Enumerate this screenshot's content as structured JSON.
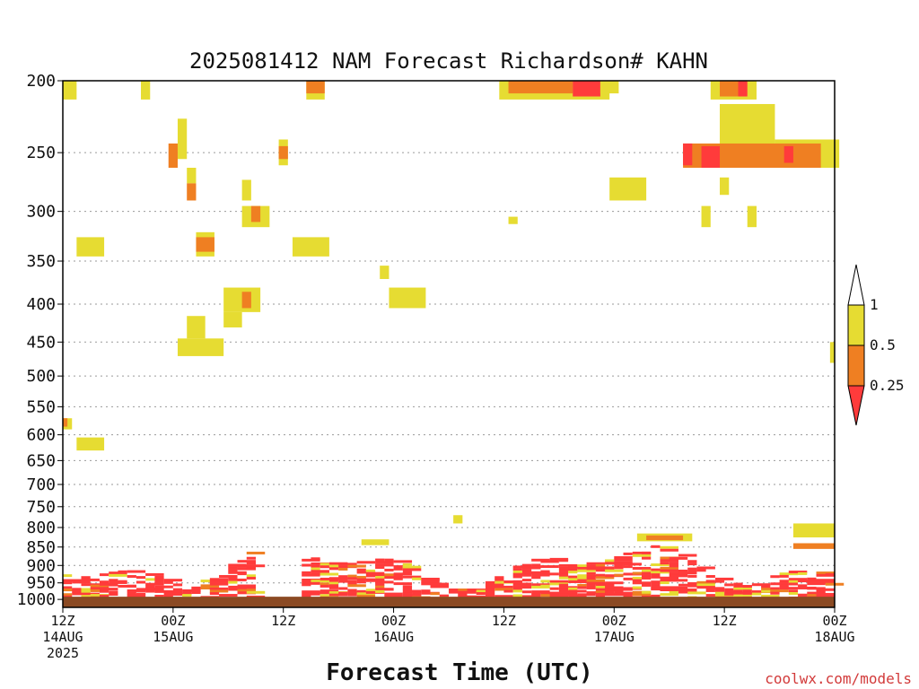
{
  "chart_data": {
    "type": "heatmap",
    "title": "2025081412 NAM Forecast Richardson# KAHN",
    "xlabel": "Forecast Time (UTC)",
    "ylabel": "",
    "credit": "coolwx.com/models",
    "y_scale": "log-pressure (inverted)",
    "y_units": "hPa",
    "ylim": [
      1025,
      200
    ],
    "grid": "dotted horizontal at labeled pressure levels",
    "y_ticks": [
      200,
      250,
      300,
      350,
      400,
      450,
      500,
      550,
      600,
      650,
      700,
      750,
      800,
      850,
      900,
      950,
      1000
    ],
    "x_units": "forecast hour from 2025-08-14 12Z",
    "xlim": [
      0,
      84
    ],
    "x_ticks": [
      {
        "hour": 0,
        "line1": "12Z",
        "line2": "14AUG",
        "line3": "2025"
      },
      {
        "hour": 12,
        "line1": "00Z",
        "line2": "15AUG",
        "line3": ""
      },
      {
        "hour": 24,
        "line1": "12Z",
        "line2": "",
        "line3": ""
      },
      {
        "hour": 36,
        "line1": "00Z",
        "line2": "16AUG",
        "line3": ""
      },
      {
        "hour": 48,
        "line1": "12Z",
        "line2": "",
        "line3": ""
      },
      {
        "hour": 60,
        "line1": "00Z",
        "line2": "17AUG",
        "line3": ""
      },
      {
        "hour": 72,
        "line1": "12Z",
        "line2": "",
        "line3": ""
      },
      {
        "hour": 84,
        "line1": "00Z",
        "line2": "18AUG",
        "line3": ""
      }
    ],
    "surface": {
      "pressure_hPa": 1000,
      "color": "#8b4a23"
    },
    "colorbar": {
      "levels": [
        {
          "label": "1",
          "color": "#ffffff"
        },
        {
          "label": "0.5",
          "color": "#e6dc32"
        },
        {
          "label": "0.25",
          "color": "#ef7f22"
        },
        {
          "label": "",
          "color": "#ff3b3b"
        }
      ],
      "tick_labels": [
        "1",
        "0.5",
        "0.25"
      ]
    },
    "categories": [
      {
        "name": "0.5-1",
        "color": "#e6dc32"
      },
      {
        "name": "0.25-0.5",
        "color": "#ef7f22"
      },
      {
        "name": "<0.25",
        "color": "#ff3b3b"
      }
    ],
    "patches": [
      {
        "cat": "0.5-1",
        "h": [
          0,
          1.5
        ],
        "p": [
          200,
          212
        ]
      },
      {
        "cat": "0.5-1",
        "h": [
          8.5,
          9.5
        ],
        "p": [
          200,
          212
        ]
      },
      {
        "cat": "0.5-1",
        "h": [
          1.5,
          4.5
        ],
        "p": [
          325,
          345
        ]
      },
      {
        "cat": "0.5-1",
        "h": [
          12.5,
          13.5
        ],
        "p": [
          225,
          255
        ]
      },
      {
        "cat": "0.25-0.5",
        "h": [
          11.5,
          12.5
        ],
        "p": [
          243,
          262
        ]
      },
      {
        "cat": "0.5-1",
        "h": [
          13.5,
          14.5
        ],
        "p": [
          262,
          275
        ]
      },
      {
        "cat": "0.25-0.5",
        "h": [
          13.5,
          14.5
        ],
        "p": [
          275,
          290
        ]
      },
      {
        "cat": "0.5-1",
        "h": [
          14.5,
          16.5
        ],
        "p": [
          320,
          345
        ]
      },
      {
        "cat": "0.25-0.5",
        "h": [
          14.5,
          16.5
        ],
        "p": [
          325,
          340
        ]
      },
      {
        "cat": "0.5-1",
        "h": [
          19.5,
          20.5
        ],
        "p": [
          272,
          290
        ]
      },
      {
        "cat": "0.5-1",
        "h": [
          19.5,
          22.5
        ],
        "p": [
          295,
          315
        ]
      },
      {
        "cat": "0.25-0.5",
        "h": [
          20.5,
          21.5
        ],
        "p": [
          295,
          310
        ]
      },
      {
        "cat": "0.5-1",
        "h": [
          23.5,
          24.5
        ],
        "p": [
          240,
          260
        ]
      },
      {
        "cat": "0.25-0.5",
        "h": [
          23.5,
          24.5
        ],
        "p": [
          245,
          255
        ]
      },
      {
        "cat": "0.5-1",
        "h": [
          25,
          29
        ],
        "p": [
          325,
          345
        ]
      },
      {
        "cat": "0.5-1",
        "h": [
          17.5,
          21.5
        ],
        "p": [
          380,
          410
        ]
      },
      {
        "cat": "0.25-0.5",
        "h": [
          19.5,
          20.5
        ],
        "p": [
          385,
          405
        ]
      },
      {
        "cat": "0.5-1",
        "h": [
          17.5,
          19.5
        ],
        "p": [
          410,
          430
        ]
      },
      {
        "cat": "0.5-1",
        "h": [
          13.5,
          15.5
        ],
        "p": [
          415,
          445
        ]
      },
      {
        "cat": "0.5-1",
        "h": [
          12.5,
          17.5
        ],
        "p": [
          445,
          470
        ]
      },
      {
        "cat": "0.5-1",
        "h": [
          34.5,
          35.5
        ],
        "p": [
          355,
          370
        ]
      },
      {
        "cat": "0.5-1",
        "h": [
          35.5,
          39.5
        ],
        "p": [
          380,
          405
        ]
      },
      {
        "cat": "0.5-1",
        "h": [
          26.5,
          28.5
        ],
        "p": [
          200,
          212
        ]
      },
      {
        "cat": "0.25-0.5",
        "h": [
          26.5,
          28.5
        ],
        "p": [
          200,
          208
        ]
      },
      {
        "cat": "0.5-1",
        "h": [
          47.5,
          59.5
        ],
        "p": [
          200,
          212
        ]
      },
      {
        "cat": "0.25-0.5",
        "h": [
          48.5,
          55.5
        ],
        "p": [
          200,
          208
        ]
      },
      {
        "cat": "<0.25",
        "h": [
          55.5,
          58.5
        ],
        "p": [
          200,
          210
        ]
      },
      {
        "cat": "0.5-1",
        "h": [
          58.5,
          60.5
        ],
        "p": [
          200,
          208
        ]
      },
      {
        "cat": "0.5-1",
        "h": [
          59.5,
          63.5
        ],
        "p": [
          270,
          290
        ]
      },
      {
        "cat": "0.5-1",
        "h": [
          48.5,
          49.5
        ],
        "p": [
          305,
          312
        ]
      },
      {
        "cat": "0.5-1",
        "h": [
          69.5,
          70.5
        ],
        "p": [
          295,
          315
        ]
      },
      {
        "cat": "0.5-1",
        "h": [
          71.5,
          72.5
        ],
        "p": [
          270,
          285
        ]
      },
      {
        "cat": "0.5-1",
        "h": [
          74.5,
          75.5
        ],
        "p": [
          295,
          315
        ]
      },
      {
        "cat": "0.5-1",
        "h": [
          70.5,
          75.5
        ],
        "p": [
          200,
          212
        ]
      },
      {
        "cat": "0.25-0.5",
        "h": [
          71.5,
          73.5
        ],
        "p": [
          200,
          210
        ]
      },
      {
        "cat": "<0.25",
        "h": [
          73.5,
          74.5
        ],
        "p": [
          200,
          210
        ]
      },
      {
        "cat": "0.5-1",
        "h": [
          71.5,
          77.5
        ],
        "p": [
          215,
          260
        ]
      },
      {
        "cat": "0.5-1",
        "h": [
          77.5,
          84.5
        ],
        "p": [
          240,
          262
        ]
      },
      {
        "cat": "0.25-0.5",
        "h": [
          67.5,
          82.5
        ],
        "p": [
          243,
          262
        ]
      },
      {
        "cat": "<0.25",
        "h": [
          67.5,
          68.5
        ],
        "p": [
          243,
          260
        ]
      },
      {
        "cat": "<0.25",
        "h": [
          69.5,
          71.5
        ],
        "p": [
          245,
          262
        ]
      },
      {
        "cat": "<0.25",
        "h": [
          78.5,
          79.5
        ],
        "p": [
          245,
          258
        ]
      },
      {
        "cat": "0.5-1",
        "h": [
          0,
          1
        ],
        "p": [
          570,
          590
        ]
      },
      {
        "cat": "0.25-0.5",
        "h": [
          0,
          0.5
        ],
        "p": [
          570,
          585
        ]
      },
      {
        "cat": "0.5-1",
        "h": [
          1.5,
          4.5
        ],
        "p": [
          605,
          630
        ]
      },
      {
        "cat": "0.5-1",
        "h": [
          83.5,
          84
        ],
        "p": [
          450,
          480
        ]
      },
      {
        "cat": "0.5-1",
        "h": [
          32.5,
          35.5
        ],
        "p": [
          830,
          845
        ]
      },
      {
        "cat": "0.5-1",
        "h": [
          42.5,
          43.5
        ],
        "p": [
          770,
          790
        ]
      },
      {
        "cat": "0.5-1",
        "h": [
          62.5,
          68.5
        ],
        "p": [
          815,
          835
        ]
      },
      {
        "cat": "0.25-0.5",
        "h": [
          63.5,
          67.5
        ],
        "p": [
          820,
          832
        ]
      },
      {
        "cat": "0.5-1",
        "h": [
          79.5,
          84
        ],
        "p": [
          790,
          825
        ]
      },
      {
        "cat": "0.25-0.5",
        "h": [
          79.5,
          84
        ],
        "p": [
          840,
          855
        ]
      }
    ],
    "lowlevel_bands": [
      {
        "cat": "<0.25",
        "h": [
          0,
          84
        ],
        "p": [
          870,
          995
        ]
      },
      {
        "cat": "0.5-1",
        "h": [
          0,
          84
        ],
        "p": [
          840,
          990
        ]
      },
      {
        "cat": "0.25-0.5",
        "h": [
          0,
          84
        ],
        "p": [
          860,
          990
        ]
      }
    ]
  }
}
